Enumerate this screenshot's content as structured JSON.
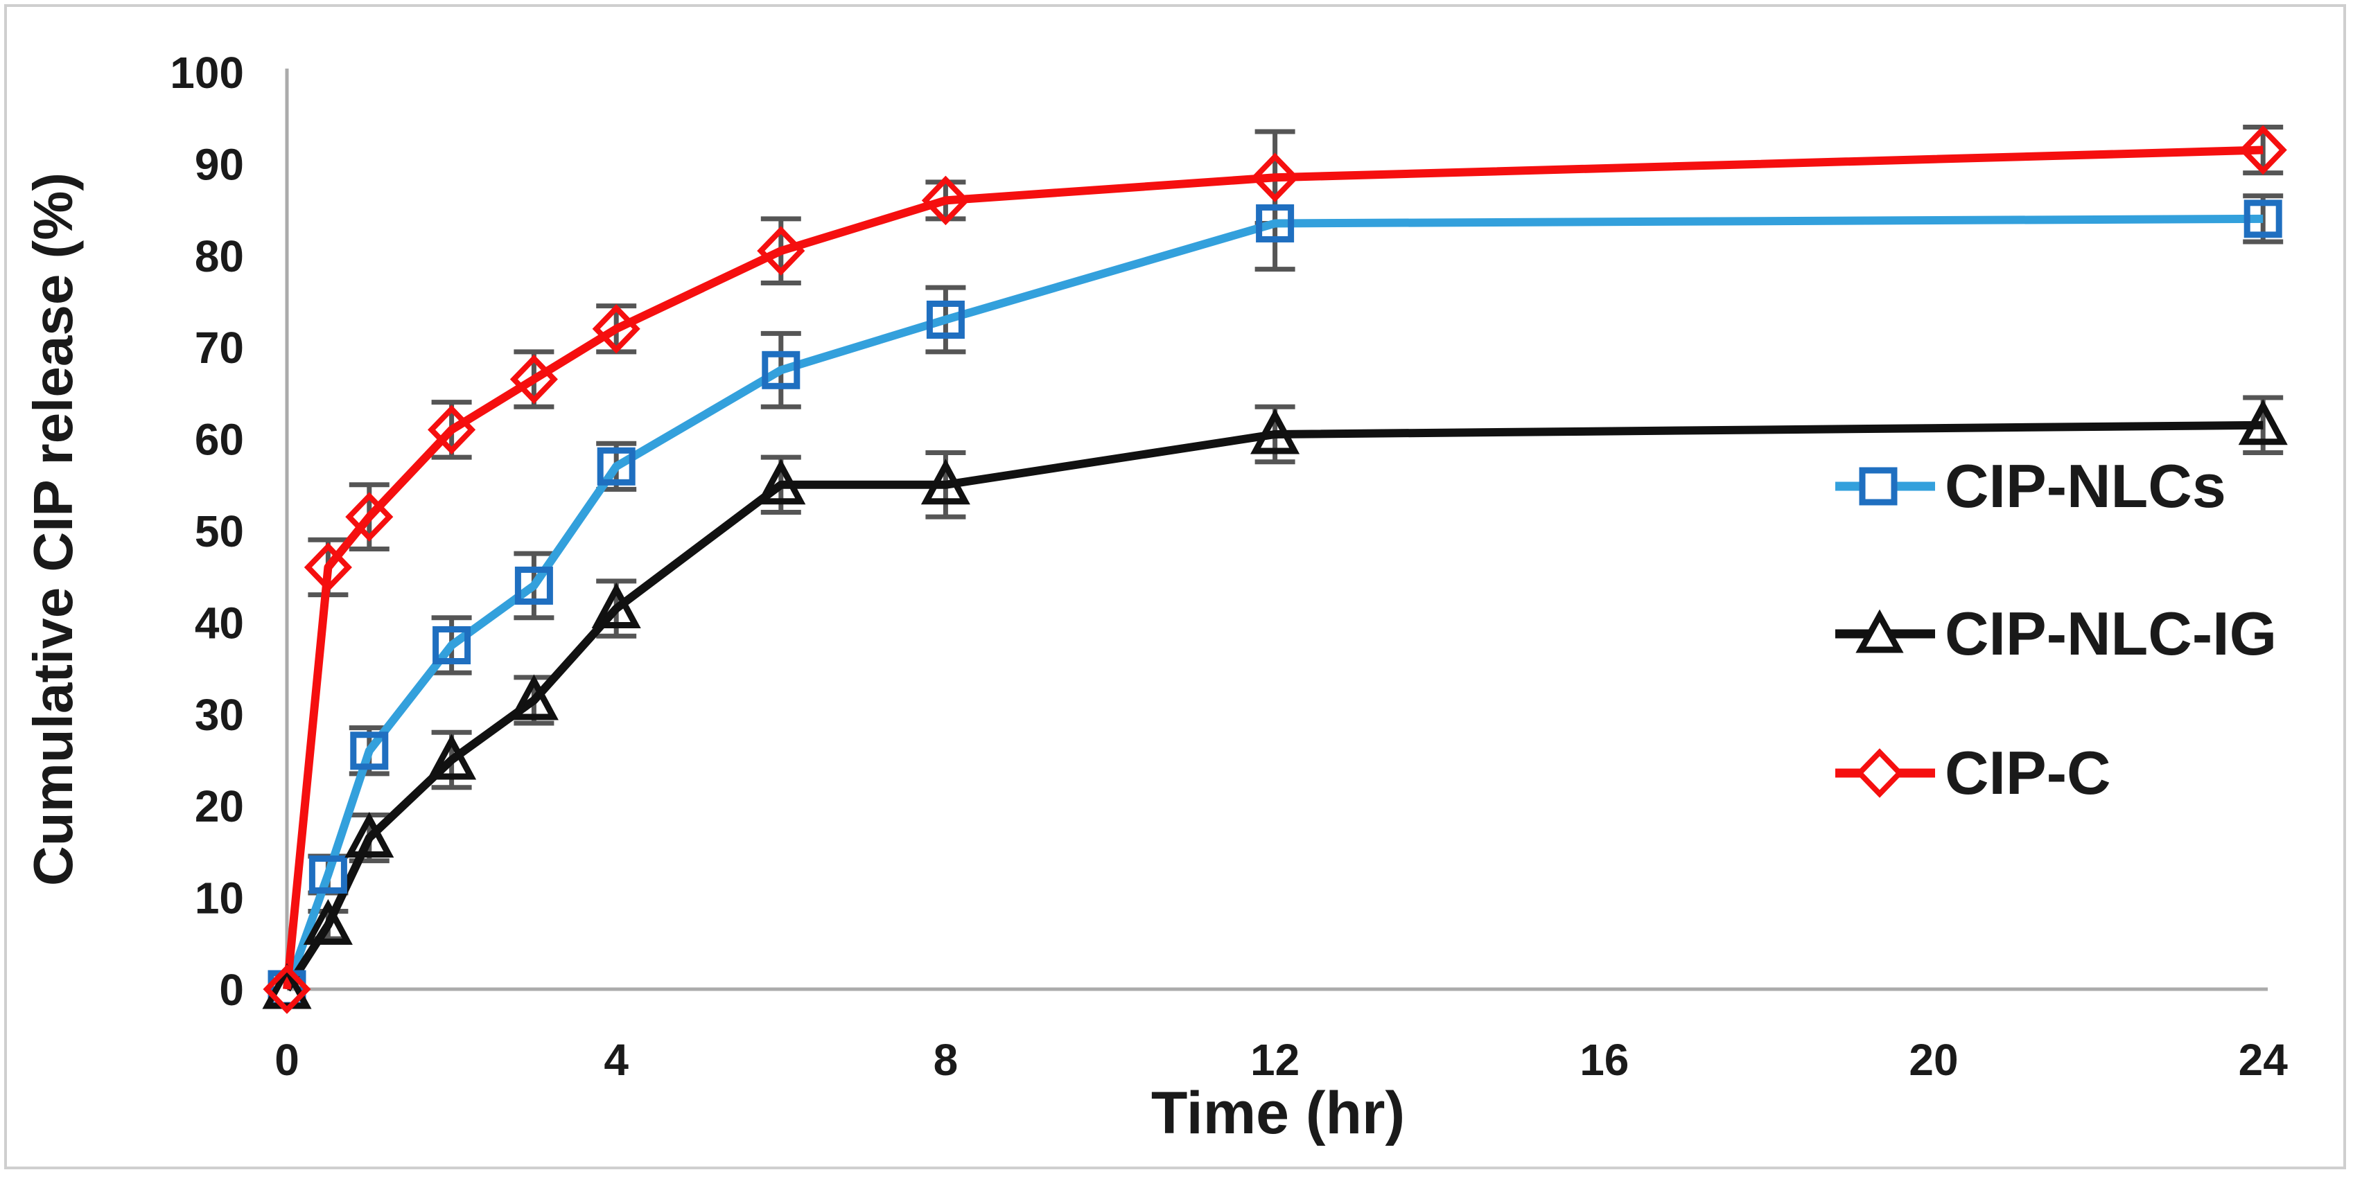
{
  "figure": {
    "background": "#ffffff",
    "border_color": "#cfcfcf"
  },
  "chart_data": {
    "type": "line",
    "title": "",
    "xlabel": "Time (hr)",
    "ylabel": "Cumulative CIP release (%)",
    "xlim": [
      0,
      24.6
    ],
    "ylim": [
      0,
      100
    ],
    "x_ticks": [
      0,
      4,
      8,
      12,
      16,
      20,
      24
    ],
    "y_ticks": [
      0,
      10,
      20,
      30,
      40,
      50,
      60,
      70,
      80,
      90,
      100
    ],
    "grid": false,
    "legend_position": "inside-right",
    "axis_color": "#ababab",
    "error_bar_color": "#555555",
    "x": [
      0,
      0.5,
      1,
      2,
      3,
      4,
      6,
      8,
      12,
      24
    ],
    "series": [
      {
        "name": "CIP-NLCs",
        "marker": "square",
        "line_color": "#33a0dc",
        "marker_color": "#1f6fc0",
        "values": [
          0,
          12.5,
          26,
          37.5,
          44,
          57,
          67.5,
          73,
          83.5,
          84
        ],
        "errors": [
          0,
          2,
          2.5,
          3,
          3.5,
          2.5,
          4,
          3.5,
          5,
          2.5
        ]
      },
      {
        "name": "CIP-NLC-IG",
        "marker": "triangle",
        "line_color": "#111111",
        "marker_color": "#111111",
        "values": [
          0,
          7,
          16.5,
          25,
          31.5,
          41.5,
          55,
          55,
          60.5,
          61.5
        ],
        "errors": [
          0,
          1.5,
          2.5,
          3,
          2.5,
          3,
          3,
          3.5,
          3,
          3
        ]
      },
      {
        "name": "CIP-C",
        "marker": "diamond",
        "line_color": "#f50f0f",
        "marker_color": "#f50f0f",
        "values": [
          0,
          46,
          51.5,
          61,
          66.5,
          72,
          80.5,
          86,
          88.5,
          91.5
        ],
        "errors": [
          0,
          3,
          3.5,
          3,
          3,
          2.5,
          3.5,
          2,
          5,
          2.5
        ]
      }
    ]
  }
}
